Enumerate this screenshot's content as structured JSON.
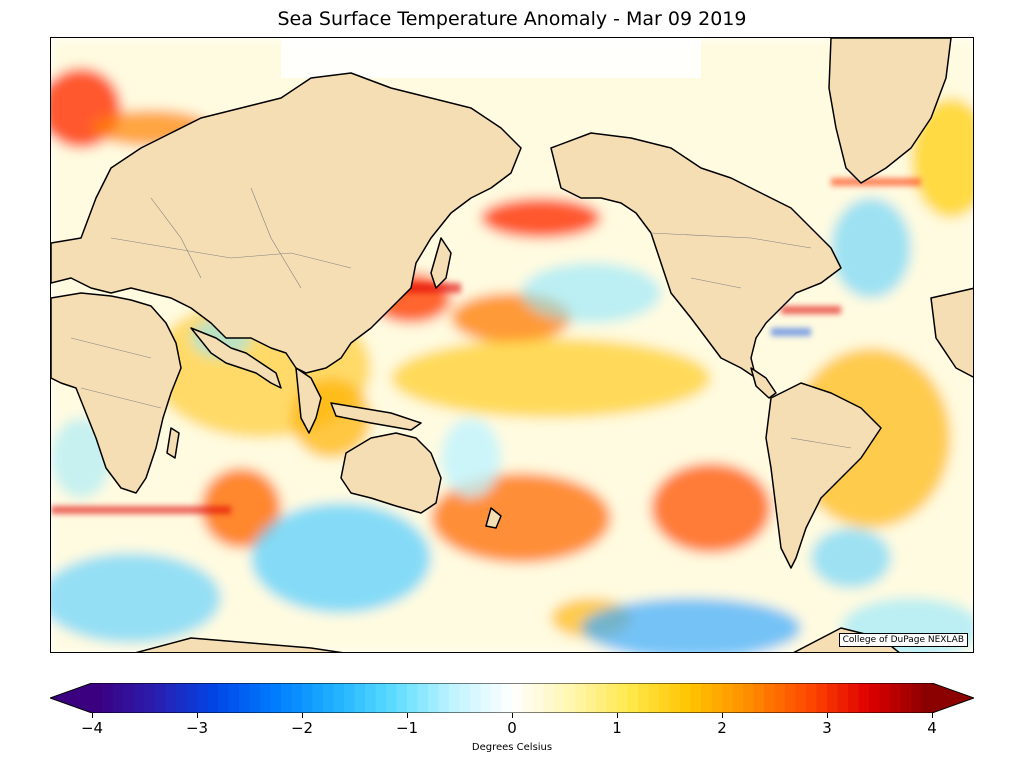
{
  "title": "Sea Surface Temperature Anomaly - Mar 09 2019",
  "credit": "College of DuPage NEXLAB",
  "colorbar": {
    "label": "Degrees Celsius",
    "min": -4,
    "max": 4,
    "ticks": [
      "−4",
      "−3",
      "−2",
      "−1",
      "0",
      "1",
      "2",
      "3",
      "4"
    ],
    "colors": [
      "#3b0080",
      "#2a1fb0",
      "#0046e6",
      "#007cff",
      "#1fb0ff",
      "#5cdcff",
      "#bff4ff",
      "#ffffff",
      "#fff7b0",
      "#ffe84a",
      "#ffc400",
      "#ff8c00",
      "#ff4a00",
      "#e00000",
      "#8b0000"
    ]
  },
  "palette": {
    "land": "#f5deb3",
    "coast": "#000000",
    "border": "#808080",
    "ice": "#ffffff"
  }
}
